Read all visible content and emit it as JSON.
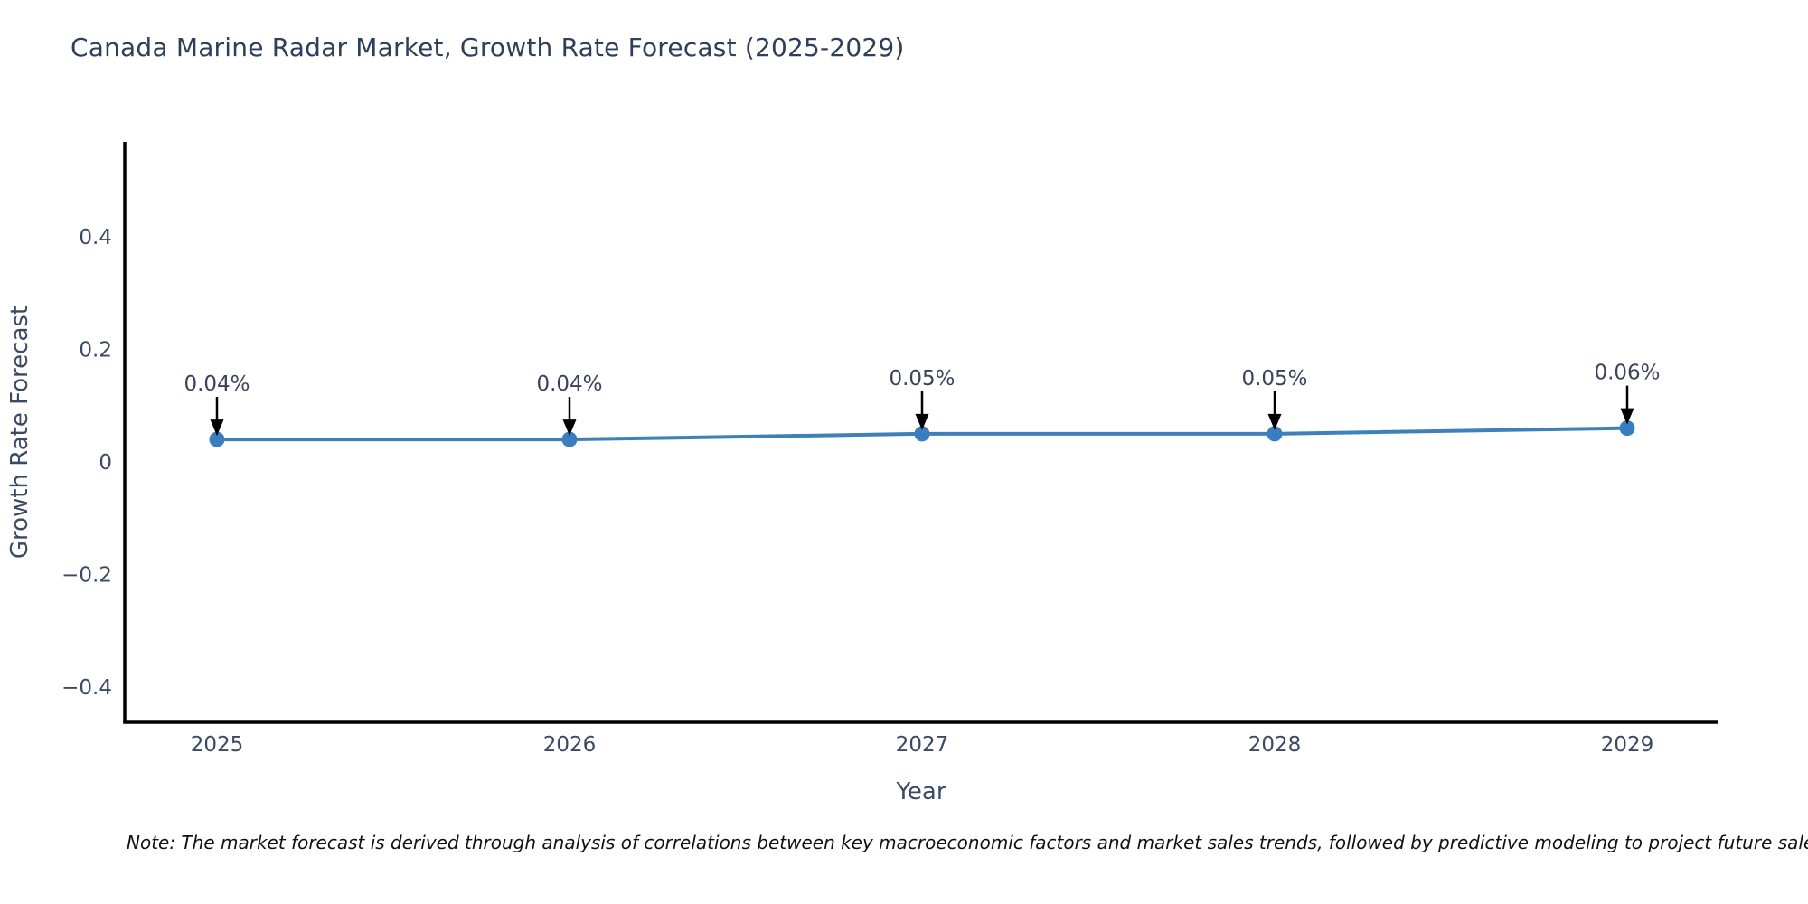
{
  "title": "Canada Marine Radar Market, Growth Rate Forecast (2025-2029)",
  "note": "Note: The market forecast is derived through analysis of correlations between key macroeconomic factors and market sales trends, followed by predictive modeling to project future sales.",
  "chart_data": {
    "type": "line",
    "x": [
      2025,
      2026,
      2027,
      2028,
      2029
    ],
    "series": [
      {
        "name": "Growth Rate Forecast",
        "values": [
          0.04,
          0.04,
          0.05,
          0.05,
          0.06
        ]
      }
    ],
    "point_labels": [
      "0.04%",
      "0.04%",
      "0.05%",
      "0.05%",
      "0.06%"
    ],
    "title": "Canada Marine Radar Market, Growth Rate Forecast (2025-2029)",
    "xlabel": "Year",
    "ylabel": "Growth Rate Forecast",
    "yticks": [
      0.4,
      0.2,
      0,
      -0.2,
      -0.4
    ],
    "ylim": [
      -0.46,
      0.57
    ],
    "grid": false,
    "legend": "none",
    "line_color": "#3d81b8",
    "marker_color": "#3a7ebf",
    "annotation_arrow_color": "#000000",
    "axis_color": "#000000",
    "tick_text_color": "#3b4a63",
    "annotation_text_color": "#39445a",
    "title_color": "#2e3f5c"
  }
}
